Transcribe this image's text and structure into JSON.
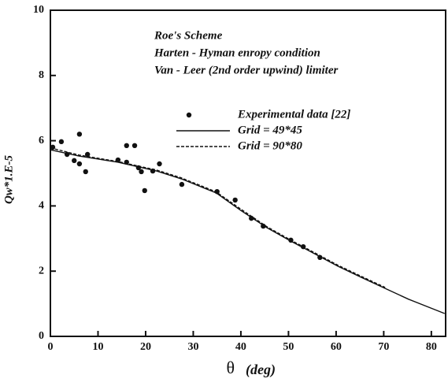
{
  "chart_data": {
    "type": "line",
    "annotations": [
      "Roe's Scheme",
      "Harten - Hyman enropy condition",
      "Van - Leer (2nd order upwind) limiter"
    ],
    "xlabel": "θ",
    "xlabel_unit": "(deg)",
    "ylabel": "Qw*1.E-5",
    "xlim": [
      0,
      83
    ],
    "ylim": [
      0,
      10
    ],
    "xticks": [
      0,
      10,
      20,
      30,
      40,
      50,
      60,
      70,
      80
    ],
    "yticks": [
      0,
      2,
      4,
      6,
      8,
      10
    ],
    "series": [
      {
        "name": "Experimental data [22]",
        "style": "points",
        "color": "#111",
        "x": [
          0.5,
          2.3,
          3.5,
          5,
          6.1,
          6.1,
          7.4,
          7.8,
          14.2,
          16,
          16,
          17.7,
          18.5,
          19.1,
          19.8,
          21.5,
          22.9,
          27.6,
          35,
          38.8,
          42.2,
          44.7,
          50.5,
          53.1,
          56.6
        ],
        "values": [
          5.8,
          5.97,
          5.58,
          5.39,
          5.29,
          6.2,
          5.05,
          5.58,
          5.41,
          5.85,
          5.34,
          5.85,
          5.17,
          5.05,
          4.47,
          5.07,
          5.29,
          4.66,
          4.44,
          4.18,
          3.62,
          3.38,
          2.95,
          2.75,
          2.42
        ]
      },
      {
        "name": "Grid = 49*45",
        "style": "solid",
        "color": "#111",
        "x": [
          0,
          6,
          14.2,
          22.3,
          27.5,
          34.8,
          40,
          45.5,
          50.5,
          55.4,
          60.4,
          65.3,
          70.3,
          75.2,
          82.8
        ],
        "values": [
          5.72,
          5.53,
          5.34,
          5.07,
          4.83,
          4.4,
          3.86,
          3.33,
          2.92,
          2.54,
          2.15,
          1.81,
          1.47,
          1.14,
          0.7
        ]
      },
      {
        "name": "Grid = 90*80",
        "style": "dashed",
        "color": "#111",
        "x": [
          0,
          6,
          14.2,
          22.3,
          27.5,
          34.8,
          40,
          45.5,
          50.5,
          55.4,
          60.4,
          65.3,
          70.3
        ],
        "values": [
          5.78,
          5.56,
          5.36,
          5.1,
          4.86,
          4.43,
          3.9,
          3.36,
          2.95,
          2.57,
          2.18,
          1.84,
          1.5
        ]
      }
    ]
  }
}
